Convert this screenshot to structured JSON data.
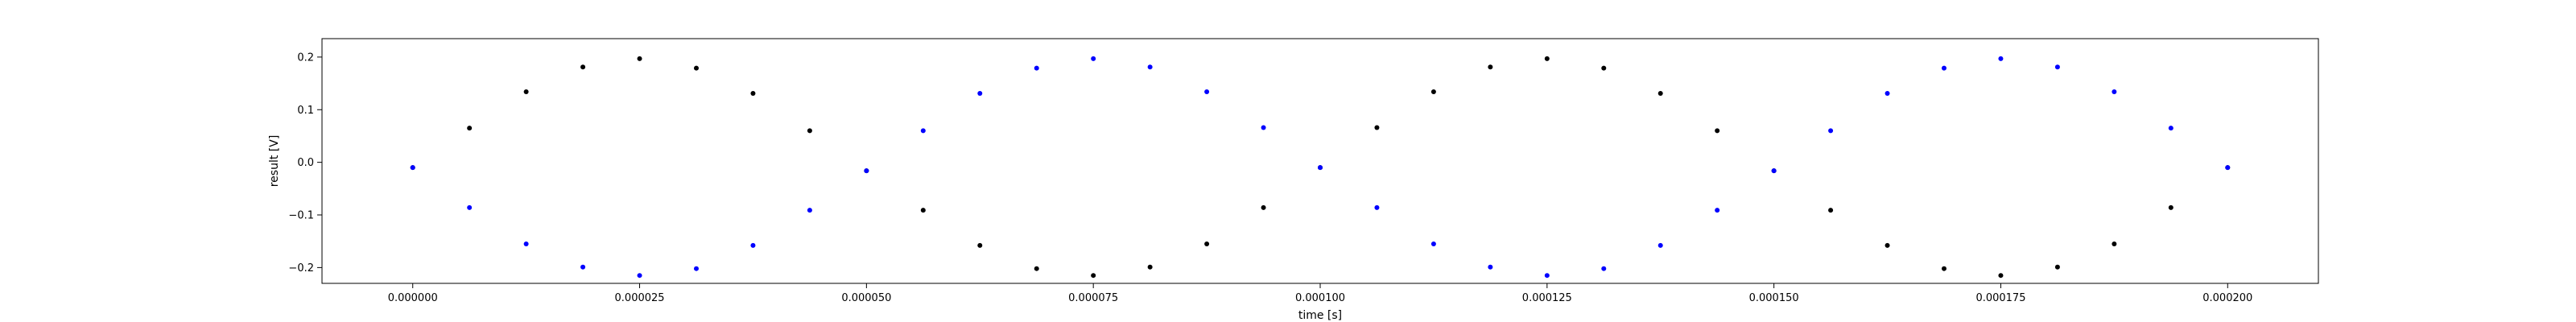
{
  "chart_data": {
    "type": "scatter",
    "title": "",
    "xlabel": "time [s]",
    "ylabel": "result [V]",
    "xlim": [
      -1e-05,
      0.00021
    ],
    "ylim": [
      -0.23,
      0.235
    ],
    "x_ticks": [
      {
        "value": 0.0,
        "label": "0.000000"
      },
      {
        "value": 2.5e-05,
        "label": "0.000025"
      },
      {
        "value": 5e-05,
        "label": "0.000050"
      },
      {
        "value": 7.5e-05,
        "label": "0.000075"
      },
      {
        "value": 0.0001,
        "label": "0.000100"
      },
      {
        "value": 0.000125,
        "label": "0.000125"
      },
      {
        "value": 0.00015,
        "label": "0.000150"
      },
      {
        "value": 0.000175,
        "label": "0.000175"
      },
      {
        "value": 0.0002,
        "label": "0.000200"
      }
    ],
    "y_ticks": [
      {
        "value": -0.2,
        "label": "−0.2"
      },
      {
        "value": -0.1,
        "label": "−0.1"
      },
      {
        "value": 0.0,
        "label": "0.0"
      },
      {
        "value": 0.1,
        "label": "0.1"
      },
      {
        "value": 0.2,
        "label": "0.2"
      }
    ],
    "grid": false,
    "series": [
      {
        "color": "#000000",
        "x": [
          0,
          6.25e-06,
          1.25e-05,
          1.875e-05,
          2.5e-05,
          3.125e-05,
          3.75e-05,
          4.375e-05,
          5e-05,
          5.625e-05,
          6.25e-05,
          6.875e-05,
          7.5e-05,
          8.125e-05,
          8.75e-05,
          9.375e-05,
          0.0001,
          0.00010625,
          0.0001125,
          0.00011875,
          0.000125,
          0.00013125,
          0.0001375,
          0.00014375,
          0.00015,
          0.00015625,
          0.0001625,
          0.00016875,
          0.000175,
          0.00018125,
          0.0001875,
          0.00019375,
          0.0002
        ],
        "y": [
          -0.01,
          0.065,
          0.134,
          0.181,
          0.197,
          0.179,
          0.131,
          0.06,
          -0.016,
          -0.091,
          -0.158,
          -0.202,
          -0.215,
          -0.199,
          -0.155,
          -0.086,
          -0.01,
          0.066,
          0.134,
          0.181,
          0.197,
          0.179,
          0.131,
          0.06,
          -0.016,
          -0.091,
          -0.158,
          -0.202,
          -0.215,
          -0.199,
          -0.155,
          -0.086,
          -0.01
        ]
      },
      {
        "color": "#0000ff",
        "x": [
          0,
          6.25e-06,
          1.25e-05,
          1.875e-05,
          2.5e-05,
          3.125e-05,
          3.75e-05,
          4.375e-05,
          5e-05,
          5.625e-05,
          6.25e-05,
          6.875e-05,
          7.5e-05,
          8.125e-05,
          8.75e-05,
          9.375e-05,
          0.0001,
          0.00010625,
          0.0001125,
          0.00011875,
          0.000125,
          0.00013125,
          0.0001375,
          0.00014375,
          0.00015,
          0.00015625,
          0.0001625,
          0.00016875,
          0.000175,
          0.00018125,
          0.0001875,
          0.00019375,
          0.0002
        ],
        "y": [
          -0.01,
          -0.086,
          -0.155,
          -0.199,
          -0.215,
          -0.202,
          -0.158,
          -0.091,
          -0.016,
          0.06,
          0.131,
          0.179,
          0.197,
          0.181,
          0.134,
          0.066,
          -0.01,
          -0.086,
          -0.155,
          -0.199,
          -0.215,
          -0.202,
          -0.158,
          -0.091,
          -0.016,
          0.06,
          0.131,
          0.179,
          0.197,
          0.181,
          0.134,
          0.065,
          -0.01
        ]
      }
    ]
  }
}
